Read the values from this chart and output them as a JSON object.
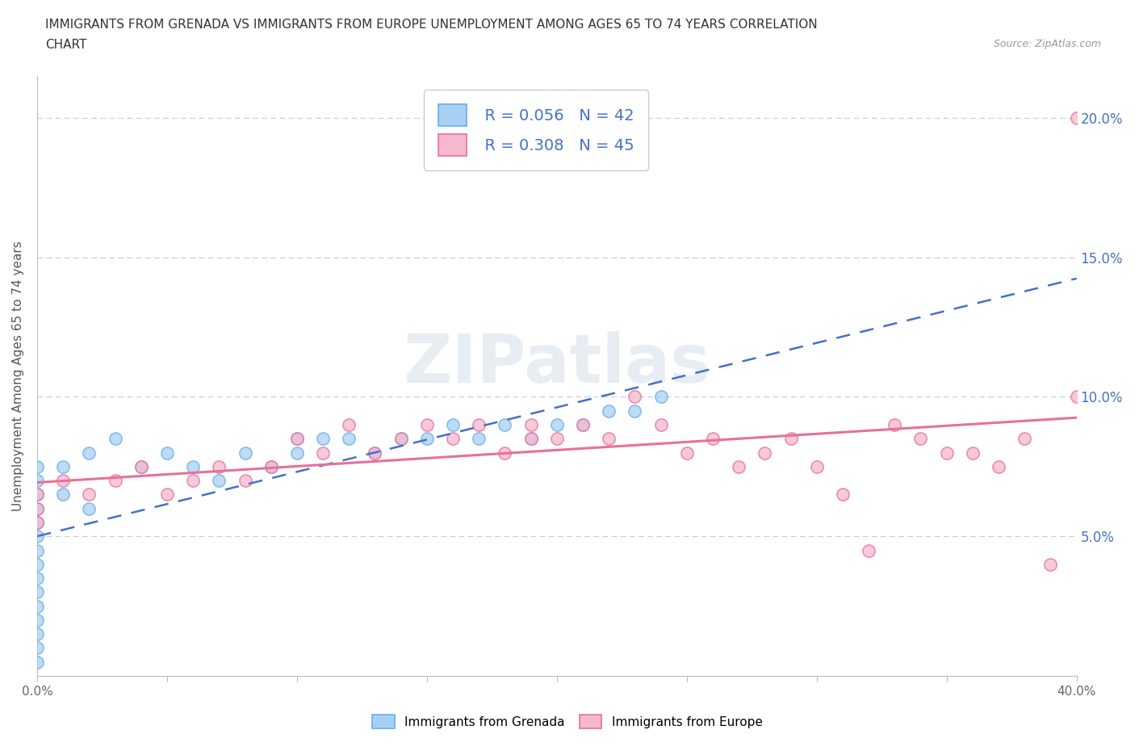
{
  "title_line1": "IMMIGRANTS FROM GRENADA VS IMMIGRANTS FROM EUROPE UNEMPLOYMENT AMONG AGES 65 TO 74 YEARS CORRELATION",
  "title_line2": "CHART",
  "source_text": "Source: ZipAtlas.com",
  "ylabel": "Unemployment Among Ages 65 to 74 years",
  "xmin": 0.0,
  "xmax": 0.4,
  "ymin": 0.0,
  "ymax": 0.215,
  "yticks": [
    0.05,
    0.1,
    0.15,
    0.2
  ],
  "ytick_labels": [
    "5.0%",
    "10.0%",
    "15.0%",
    "20.0%"
  ],
  "xticks": [
    0.0,
    0.05,
    0.1,
    0.15,
    0.2,
    0.25,
    0.3,
    0.35,
    0.4
  ],
  "xtick_labels": [
    "0.0%",
    "",
    "",
    "",
    "",
    "",
    "",
    "",
    "40.0%"
  ],
  "legend_R1": "R = 0.056",
  "legend_N1": "N = 42",
  "legend_R2": "R = 0.308",
  "legend_N2": "N = 45",
  "color_grenada_fill": "#A8D0F5",
  "color_grenada_edge": "#6AAEE8",
  "color_europe_fill": "#F5B8CE",
  "color_europe_edge": "#E87099",
  "color_grenada_line": "#4472C4",
  "color_europe_line": "#E87099",
  "color_text_blue": "#4472C4",
  "watermark_text": "ZIPatlas",
  "grenada_x": [
    0.0,
    0.0,
    0.0,
    0.0,
    0.0,
    0.0,
    0.0,
    0.0,
    0.0,
    0.0,
    0.0,
    0.0,
    0.0,
    0.0,
    0.0,
    0.01,
    0.01,
    0.02,
    0.02,
    0.03,
    0.04,
    0.05,
    0.06,
    0.07,
    0.08,
    0.09,
    0.1,
    0.1,
    0.11,
    0.12,
    0.13,
    0.14,
    0.15,
    0.16,
    0.17,
    0.18,
    0.19,
    0.2,
    0.21,
    0.22,
    0.23,
    0.24
  ],
  "grenada_y": [
    0.075,
    0.07,
    0.065,
    0.06,
    0.055,
    0.05,
    0.045,
    0.04,
    0.035,
    0.03,
    0.025,
    0.02,
    0.015,
    0.01,
    0.005,
    0.065,
    0.075,
    0.06,
    0.08,
    0.085,
    0.075,
    0.08,
    0.075,
    0.07,
    0.08,
    0.075,
    0.085,
    0.08,
    0.085,
    0.085,
    0.08,
    0.085,
    0.085,
    0.09,
    0.085,
    0.09,
    0.085,
    0.09,
    0.09,
    0.095,
    0.095,
    0.1
  ],
  "europe_x": [
    0.0,
    0.0,
    0.0,
    0.01,
    0.02,
    0.03,
    0.04,
    0.05,
    0.06,
    0.07,
    0.08,
    0.09,
    0.1,
    0.11,
    0.12,
    0.13,
    0.14,
    0.15,
    0.16,
    0.17,
    0.18,
    0.19,
    0.19,
    0.2,
    0.21,
    0.22,
    0.23,
    0.24,
    0.25,
    0.26,
    0.27,
    0.28,
    0.29,
    0.3,
    0.31,
    0.32,
    0.33,
    0.34,
    0.35,
    0.36,
    0.37,
    0.38,
    0.39,
    0.4,
    0.4
  ],
  "europe_y": [
    0.065,
    0.06,
    0.055,
    0.07,
    0.065,
    0.07,
    0.075,
    0.065,
    0.07,
    0.075,
    0.07,
    0.075,
    0.085,
    0.08,
    0.09,
    0.08,
    0.085,
    0.09,
    0.085,
    0.09,
    0.08,
    0.085,
    0.09,
    0.085,
    0.09,
    0.085,
    0.1,
    0.09,
    0.08,
    0.085,
    0.075,
    0.08,
    0.085,
    0.075,
    0.065,
    0.045,
    0.09,
    0.085,
    0.08,
    0.08,
    0.075,
    0.085,
    0.04,
    0.1,
    0.2
  ]
}
